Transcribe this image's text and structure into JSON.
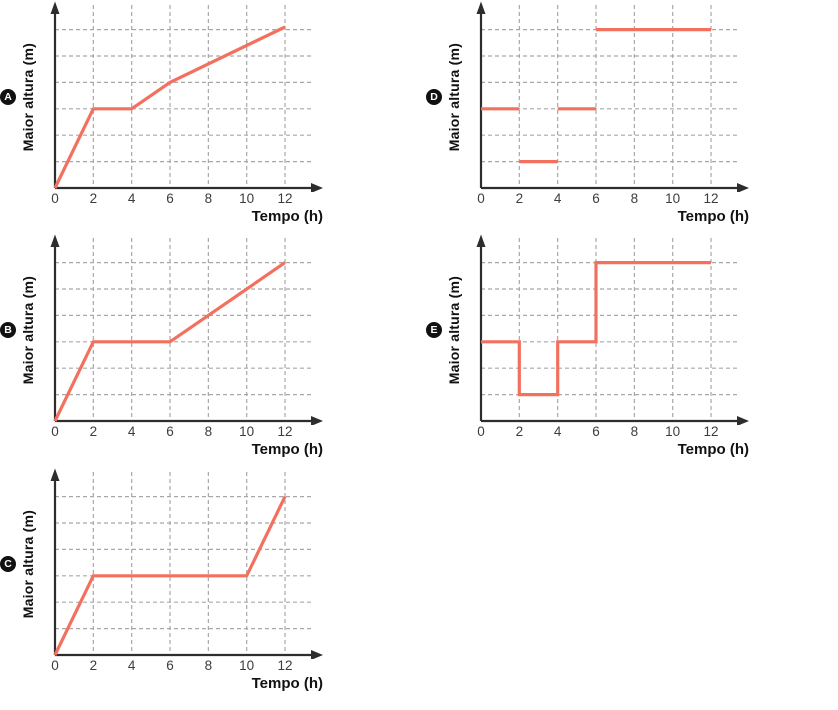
{
  "colors": {
    "line": "#f3705e",
    "axis": "#2d2d2d",
    "grid": "#a8a8a8",
    "tick_text": "#3c3c3c",
    "label_text": "#111111",
    "badge_bg": "#111111",
    "badge_text": "#ffffff"
  },
  "chart_data": [
    {
      "id": "A",
      "label": "A",
      "type": "line",
      "xlabel": "Tempo (h)",
      "ylabel": "Maior altura (m)",
      "xticks": [
        0,
        2,
        4,
        6,
        8,
        10,
        12
      ],
      "xlim": [
        0,
        13.9
      ],
      "ylim": [
        0,
        7.1
      ],
      "yticks": [],
      "ygrid_levels": [
        1,
        2,
        3,
        4,
        5,
        6
      ],
      "y_unit_note": "y axis unlabeled; values given in gridline steps",
      "grid": "dashed",
      "segments": [
        [
          [
            0,
            0
          ],
          [
            2,
            3
          ],
          [
            4,
            3
          ],
          [
            6,
            4
          ],
          [
            12,
            6.1
          ]
        ]
      ]
    },
    {
      "id": "B",
      "label": "B",
      "type": "line",
      "xlabel": "Tempo (h)",
      "ylabel": "Maior altura (m)",
      "xticks": [
        0,
        2,
        4,
        6,
        8,
        10,
        12
      ],
      "xlim": [
        0,
        13.9
      ],
      "ylim": [
        0,
        7.1
      ],
      "yticks": [],
      "ygrid_levels": [
        1,
        2,
        3,
        4,
        5,
        6
      ],
      "y_unit_note": "y axis unlabeled; values given in gridline steps",
      "grid": "dashed",
      "segments": [
        [
          [
            0,
            0
          ],
          [
            2,
            3
          ],
          [
            6,
            3
          ],
          [
            12,
            6
          ]
        ]
      ]
    },
    {
      "id": "C",
      "label": "C",
      "type": "line",
      "xlabel": "Tempo (h)",
      "ylabel": "Maior altura (m)",
      "xticks": [
        0,
        2,
        4,
        6,
        8,
        10,
        12
      ],
      "xlim": [
        0,
        13.9
      ],
      "ylim": [
        0,
        7.1
      ],
      "yticks": [],
      "ygrid_levels": [
        1,
        2,
        3,
        4,
        5,
        6
      ],
      "y_unit_note": "y axis unlabeled; values given in gridline steps",
      "grid": "dashed",
      "segments": [
        [
          [
            0,
            0
          ],
          [
            2,
            3
          ],
          [
            10,
            3
          ],
          [
            12,
            6
          ]
        ]
      ]
    },
    {
      "id": "D",
      "label": "D",
      "type": "line",
      "xlabel": "Tempo (h)",
      "ylabel": "Maior altura (m)",
      "xticks": [
        0,
        2,
        4,
        6,
        8,
        10,
        12
      ],
      "xlim": [
        0,
        13.9
      ],
      "ylim": [
        0,
        7.1
      ],
      "yticks": [],
      "ygrid_levels": [
        1,
        2,
        3,
        4,
        5,
        6
      ],
      "y_unit_note": "y axis unlabeled; values given in gridline steps; disconnected horizontal steps",
      "grid": "dashed",
      "segments": [
        [
          [
            0,
            3
          ],
          [
            2,
            3
          ]
        ],
        [
          [
            2,
            1
          ],
          [
            4,
            1
          ]
        ],
        [
          [
            4,
            3
          ],
          [
            6,
            3
          ]
        ],
        [
          [
            6,
            6
          ],
          [
            12,
            6
          ]
        ]
      ]
    },
    {
      "id": "E",
      "label": "E",
      "type": "line",
      "xlabel": "Tempo (h)",
      "ylabel": "Maior altura (m)",
      "xticks": [
        0,
        2,
        4,
        6,
        8,
        10,
        12
      ],
      "xlim": [
        0,
        13.9
      ],
      "ylim": [
        0,
        7.1
      ],
      "yticks": [],
      "ygrid_levels": [
        1,
        2,
        3,
        4,
        5,
        6
      ],
      "y_unit_note": "y axis unlabeled; values given in gridline steps; connected step function",
      "grid": "dashed",
      "segments": [
        [
          [
            0,
            3
          ],
          [
            2,
            3
          ],
          [
            2,
            1
          ],
          [
            4,
            1
          ],
          [
            4,
            3
          ],
          [
            6,
            3
          ],
          [
            6,
            6
          ],
          [
            12,
            6
          ]
        ]
      ]
    }
  ]
}
